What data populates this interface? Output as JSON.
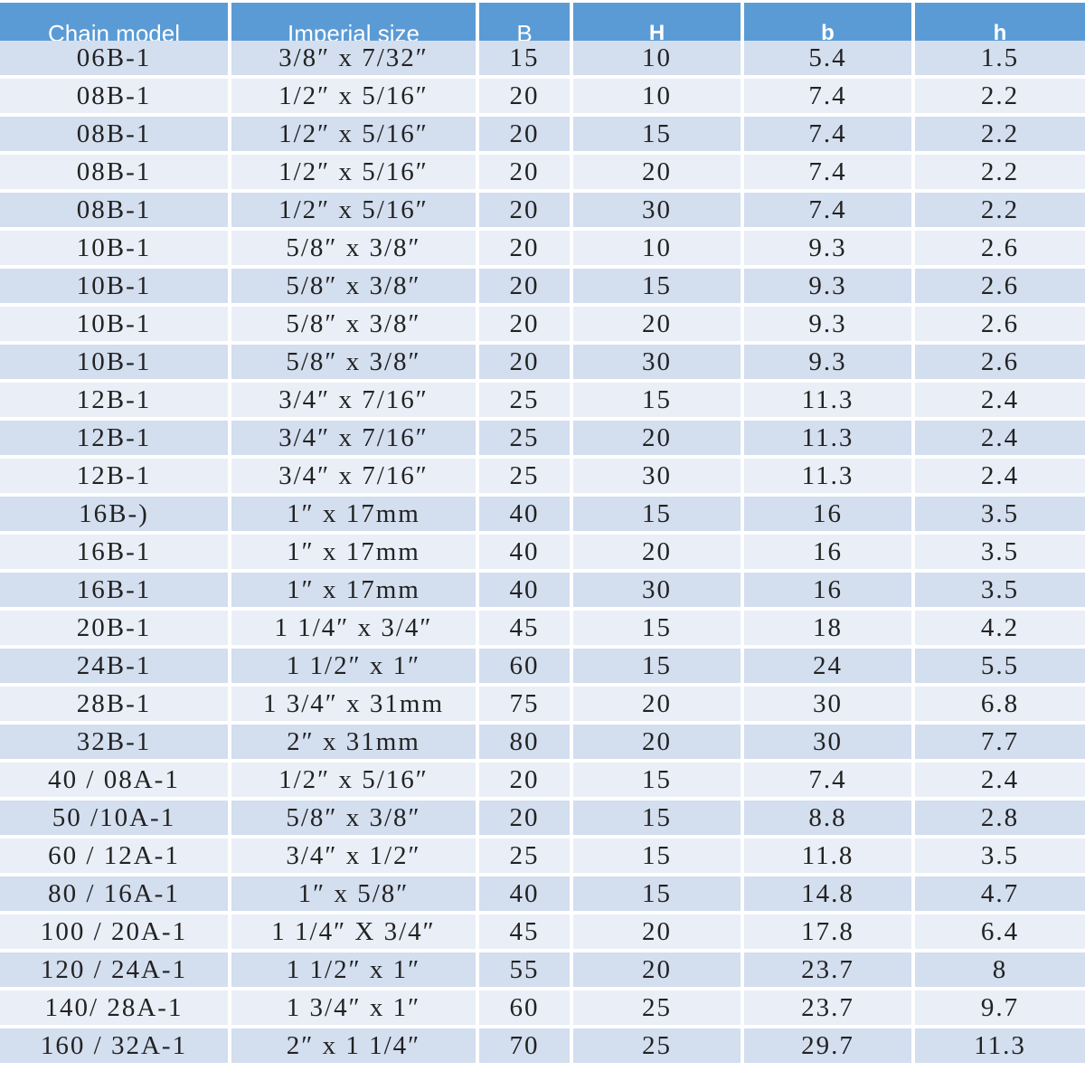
{
  "table": {
    "header": [
      "Chain model",
      "Imperial size",
      "B",
      "H",
      "b",
      "h"
    ],
    "rows": [
      [
        "06B-1",
        "3/8″ x 7/32″",
        "15",
        "10",
        "5.4",
        "1.5"
      ],
      [
        "08B-1",
        "1/2″ x 5/16″",
        "20",
        "10",
        "7.4",
        "2.2"
      ],
      [
        "08B-1",
        "1/2″ x 5/16″",
        "20",
        "15",
        "7.4",
        "2.2"
      ],
      [
        "08B-1",
        "1/2″ x 5/16″",
        "20",
        "20",
        "7.4",
        "2.2"
      ],
      [
        "08B-1",
        "1/2″ x 5/16″",
        "20",
        "30",
        "7.4",
        "2.2"
      ],
      [
        "10B-1",
        "5/8″ x 3/8″",
        "20",
        "10",
        "9.3",
        "2.6"
      ],
      [
        "10B-1",
        "5/8″ x 3/8″",
        "20",
        "15",
        "9.3",
        "2.6"
      ],
      [
        "10B-1",
        "5/8″ x 3/8″",
        "20",
        "20",
        "9.3",
        "2.6"
      ],
      [
        "10B-1",
        "5/8″ x 3/8″",
        "20",
        "30",
        "9.3",
        "2.6"
      ],
      [
        "12B-1",
        "3/4″ x 7/16″",
        "25",
        "15",
        "11.3",
        "2.4"
      ],
      [
        "12B-1",
        "3/4″ x 7/16″",
        "25",
        "20",
        "11.3",
        "2.4"
      ],
      [
        "12B-1",
        "3/4″ x 7/16″",
        "25",
        "30",
        "11.3",
        "2.4"
      ],
      [
        "16B-)",
        "1″ x 17mm",
        "40",
        "15",
        "16",
        "3.5"
      ],
      [
        "16B-1",
        "1″ x 17mm",
        "40",
        "20",
        "16",
        "3.5"
      ],
      [
        "16B-1",
        "1″ x 17mm",
        "40",
        "30",
        "16",
        "3.5"
      ],
      [
        "20B-1",
        "1 1/4″ x 3/4″",
        "45",
        "15",
        "18",
        "4.2"
      ],
      [
        "24B-1",
        "1 1/2″ x 1″",
        "60",
        "15",
        "24",
        "5.5"
      ],
      [
        "28B-1",
        "1 3/4″ x 31mm",
        "75",
        "20",
        "30",
        "6.8"
      ],
      [
        "32B-1",
        "2″ x 31mm",
        "80",
        "20",
        "30",
        "7.7"
      ],
      [
        "40 / 08A-1",
        "1/2″ x 5/16″",
        "20",
        "15",
        "7.4",
        "2.4"
      ],
      [
        "50 /10A-1",
        "5/8″ x 3/8″",
        "20",
        "15",
        "8.8",
        "2.8"
      ],
      [
        "60 / 12A-1",
        "3/4″ x 1/2″",
        "25",
        "15",
        "11.8",
        "3.5"
      ],
      [
        "80 / 16A-1",
        "1″ x 5/8″",
        "40",
        "15",
        "14.8",
        "4.7"
      ],
      [
        "100 / 20A-1",
        "1 1/4″ X 3/4″",
        "45",
        "20",
        "17.8",
        "6.4"
      ],
      [
        "120 / 24A-1",
        "1 1/2″ x 1″",
        "55",
        "20",
        "23.7",
        "8"
      ],
      [
        "140/ 28A-1",
        "1 3/4″ x 1″",
        "60",
        "25",
        "23.7",
        "9.7"
      ],
      [
        "160 / 32A-1",
        "2″ x 1 1/4″",
        "70",
        "25",
        "29.7",
        "11.3"
      ]
    ]
  }
}
